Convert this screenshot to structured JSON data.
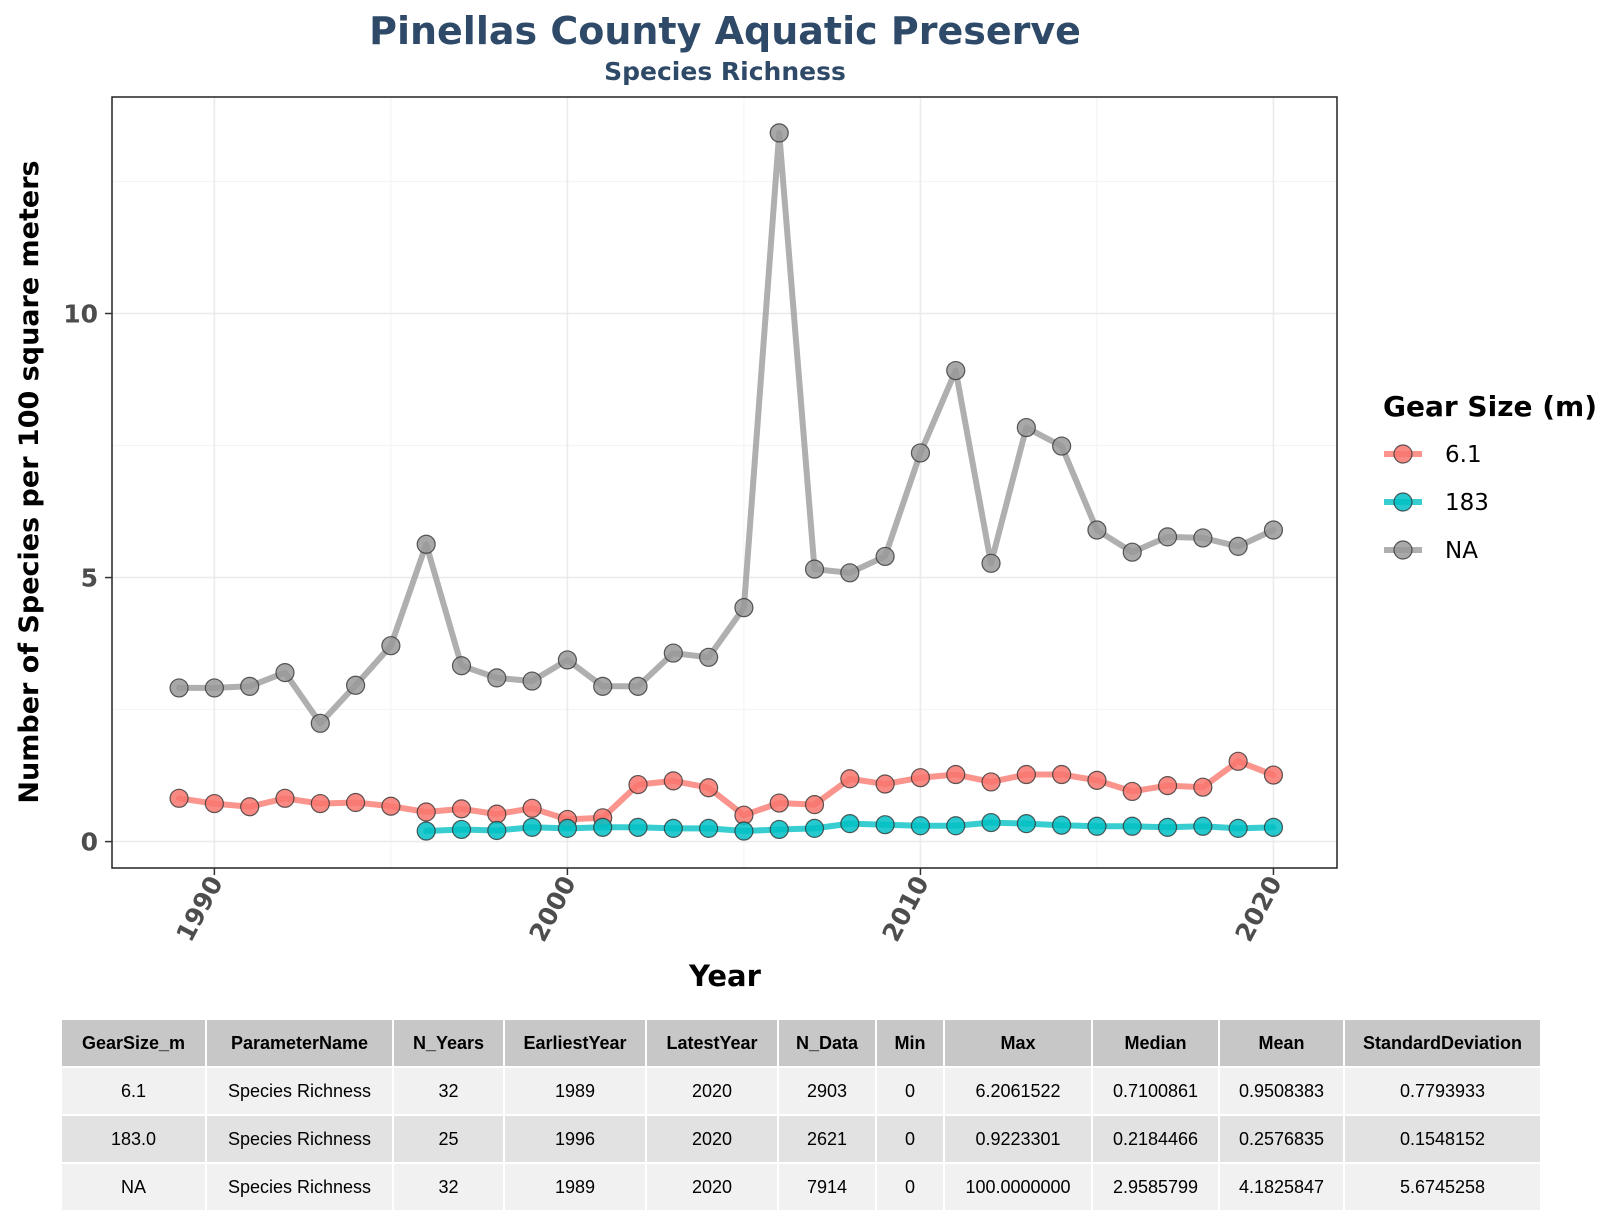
{
  "chart_data": {
    "type": "line",
    "title": "Pinellas County Aquatic Preserve",
    "subtitle": "Species Richness",
    "xlabel": "Year",
    "ylabel": "Number of Species per 100 square meters",
    "xlim": [
      1987.1,
      2021.8
    ],
    "ylim": [
      -0.5,
      14.1
    ],
    "x_ticks": [
      1990,
      2000,
      2010,
      2020
    ],
    "y_ticks": [
      0,
      5,
      10
    ],
    "grid": true,
    "legend_title": "Gear Size (m)",
    "legend_position": "right",
    "series": [
      {
        "name": "6.1",
        "color": "#f8766d",
        "x": [
          1989,
          1990,
          1991,
          1992,
          1993,
          1994,
          1995,
          1996,
          1997,
          1998,
          1999,
          2000,
          2001,
          2002,
          2003,
          2004,
          2005,
          2006,
          2007,
          2008,
          2009,
          2010,
          2011,
          2012,
          2013,
          2014,
          2015,
          2016,
          2017,
          2018,
          2019,
          2020
        ],
        "y": [
          0.82,
          0.72,
          0.66,
          0.82,
          0.72,
          0.74,
          0.67,
          0.56,
          0.62,
          0.52,
          0.63,
          0.42,
          0.45,
          1.08,
          1.15,
          1.02,
          0.5,
          0.73,
          0.7,
          1.19,
          1.09,
          1.21,
          1.27,
          1.13,
          1.27,
          1.27,
          1.16,
          0.95,
          1.06,
          1.03,
          1.52,
          1.26
        ]
      },
      {
        "name": "183",
        "color": "#00bfc4",
        "x": [
          1996,
          1997,
          1998,
          1999,
          2000,
          2001,
          2002,
          2003,
          2004,
          2005,
          2006,
          2007,
          2008,
          2009,
          2010,
          2011,
          2012,
          2013,
          2014,
          2015,
          2016,
          2017,
          2018,
          2019,
          2020
        ],
        "y": [
          0.2,
          0.23,
          0.21,
          0.27,
          0.25,
          0.27,
          0.27,
          0.25,
          0.25,
          0.2,
          0.23,
          0.25,
          0.34,
          0.32,
          0.3,
          0.3,
          0.36,
          0.34,
          0.31,
          0.29,
          0.29,
          0.27,
          0.29,
          0.25,
          0.27
        ]
      },
      {
        "name": "NA",
        "color": "#999999",
        "x": [
          1989,
          1990,
          1991,
          1992,
          1993,
          1994,
          1995,
          1996,
          1997,
          1998,
          1999,
          2000,
          2001,
          2002,
          2003,
          2004,
          2005,
          2006,
          2007,
          2008,
          2009,
          2010,
          2011,
          2012,
          2013,
          2014,
          2015,
          2016,
          2017,
          2018,
          2019,
          2020
        ],
        "y": [
          2.91,
          2.91,
          2.94,
          3.2,
          2.24,
          2.96,
          3.71,
          5.63,
          3.33,
          3.1,
          3.04,
          3.44,
          2.94,
          2.94,
          3.57,
          3.49,
          4.43,
          13.42,
          5.16,
          5.09,
          5.4,
          7.36,
          8.92,
          5.27,
          7.84,
          7.49,
          5.9,
          5.48,
          5.77,
          5.75,
          5.59,
          5.9
        ]
      }
    ]
  },
  "table": {
    "headers": [
      "GearSize_m",
      "ParameterName",
      "N_Years",
      "EarliestYear",
      "LatestYear",
      "N_Data",
      "Min",
      "Max",
      "Median",
      "Mean",
      "StandardDeviation"
    ],
    "rows": [
      [
        "6.1",
        "Species Richness",
        "32",
        "1989",
        "2020",
        "2903",
        "0",
        "6.2061522",
        "0.7100861",
        "0.9508383",
        "0.7793933"
      ],
      [
        "183.0",
        "Species Richness",
        "25",
        "1996",
        "2020",
        "2621",
        "0",
        "0.9223301",
        "0.2184466",
        "0.2576835",
        "0.1548152"
      ],
      [
        "NA",
        "Species Richness",
        "32",
        "1989",
        "2020",
        "7914",
        "0",
        "100.0000000",
        "2.9585799",
        "4.1825847",
        "5.6745258"
      ]
    ]
  }
}
